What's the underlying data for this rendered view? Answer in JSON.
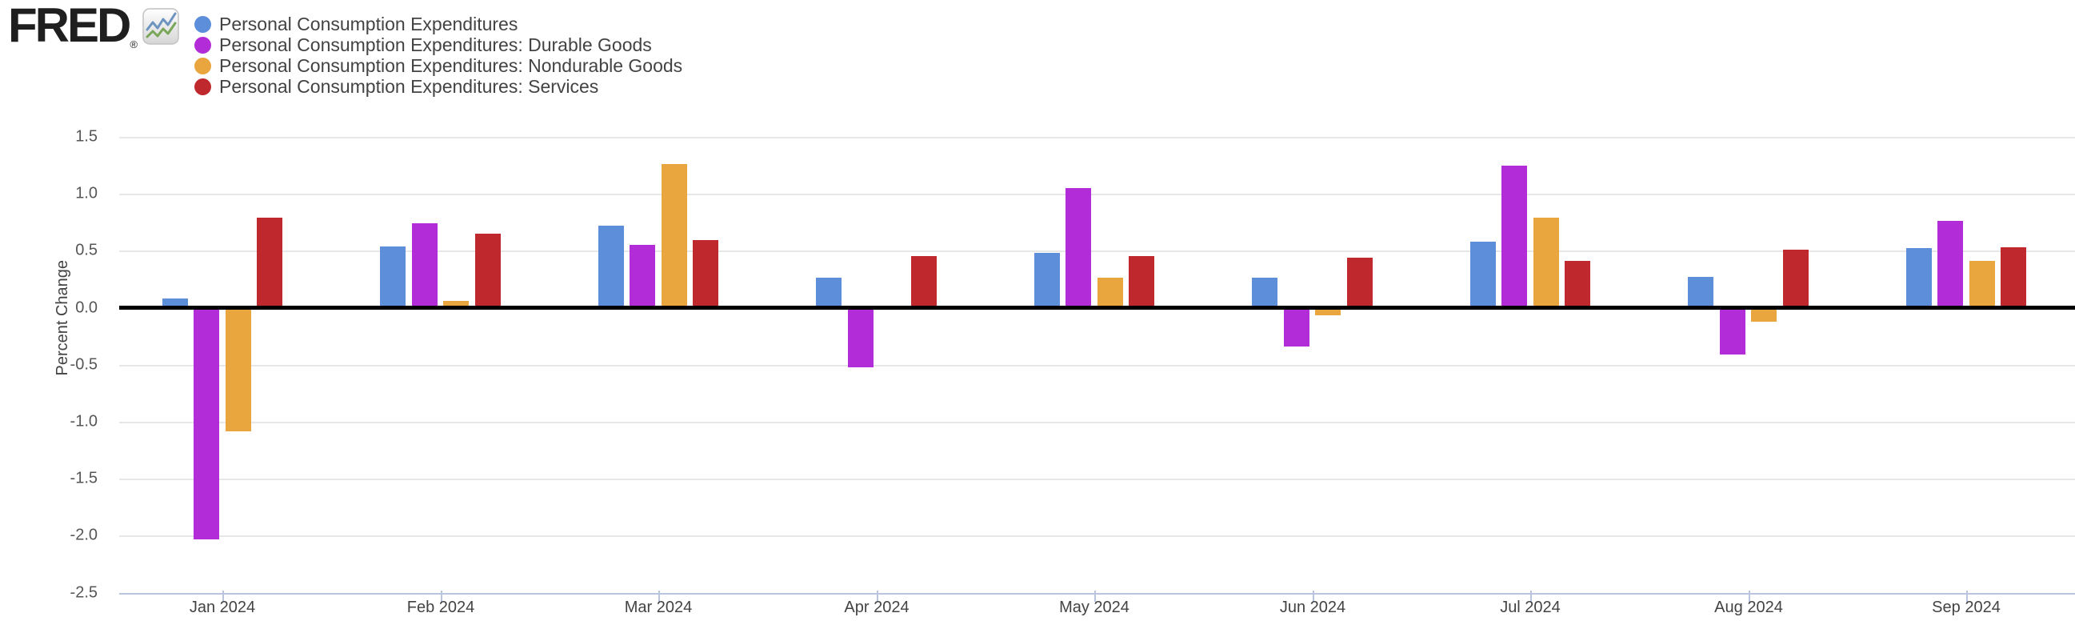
{
  "header": {
    "logo_text": "FRED",
    "logo_registered": "®",
    "logo_icon": "fred-graph-icon"
  },
  "legend": {
    "items": [
      {
        "label": "Personal Consumption Expenditures",
        "color": "#5c8ed9"
      },
      {
        "label": "Personal Consumption Expenditures: Durable Goods",
        "color": "#b22dd7"
      },
      {
        "label": "Personal Consumption Expenditures: Nondurable Goods",
        "color": "#e9a63f"
      },
      {
        "label": "Personal Consumption Expenditures: Services",
        "color": "#bf292d"
      }
    ]
  },
  "chart_data": {
    "type": "bar",
    "title": "",
    "xlabel": "",
    "ylabel": "Percent Change",
    "categories": [
      "Jan 2024",
      "Feb 2024",
      "Mar 2024",
      "Apr 2024",
      "May 2024",
      "Jun 2024",
      "Jul 2024",
      "Aug 2024",
      "Sep 2024"
    ],
    "series": [
      {
        "name": "Personal Consumption Expenditures",
        "color": "#5c8ed9",
        "values": [
          0.08,
          0.54,
          0.72,
          0.26,
          0.48,
          0.26,
          0.58,
          0.27,
          0.52
        ]
      },
      {
        "name": "Personal Consumption Expenditures: Durable Goods",
        "color": "#b22dd7",
        "values": [
          -2.03,
          0.74,
          0.55,
          -0.52,
          1.05,
          -0.34,
          1.25,
          -0.41,
          0.76
        ]
      },
      {
        "name": "Personal Consumption Expenditures: Nondurable Goods",
        "color": "#e9a63f",
        "values": [
          -1.08,
          0.06,
          1.26,
          0.0,
          0.26,
          -0.06,
          0.79,
          -0.12,
          0.41
        ]
      },
      {
        "name": "Personal Consumption Expenditures: Services",
        "color": "#bf292d",
        "values": [
          0.79,
          0.65,
          0.59,
          0.45,
          0.45,
          0.44,
          0.41,
          0.51,
          0.53
        ]
      }
    ],
    "ylim": [
      -2.5,
      1.5
    ],
    "yticks": [
      1.5,
      1.0,
      0.5,
      0.0,
      -0.5,
      -1.0,
      -1.5,
      -2.0,
      -2.5
    ],
    "grid": true,
    "zero_line": true,
    "legend_position": "top-left"
  }
}
